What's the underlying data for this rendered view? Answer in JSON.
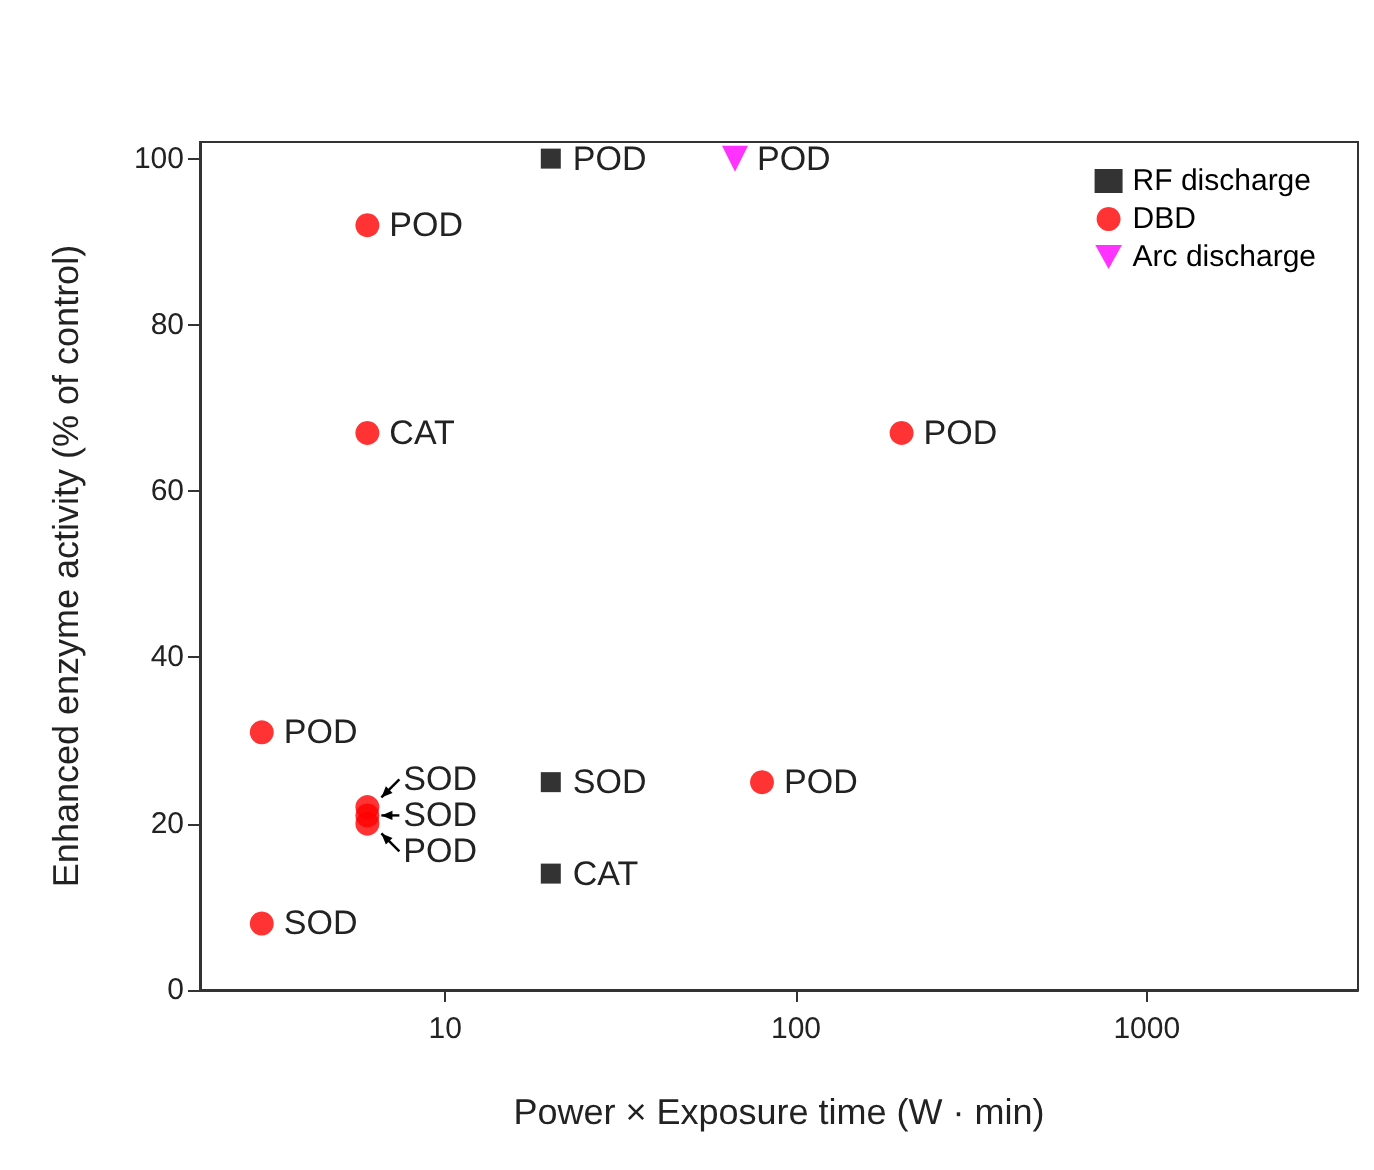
{
  "chart_data": {
    "type": "scatter",
    "xlabel": "Power × Exposure time (W · min)",
    "ylabel": "Enhanced enzyme activity (% of control)",
    "log": "x",
    "xlim": [
      2,
      4000
    ],
    "xticks": [
      10,
      100,
      1000
    ],
    "ylim": [
      0,
      102
    ],
    "yticks": [
      0,
      20,
      40,
      60,
      80,
      100
    ],
    "grid": false,
    "legend": "top right",
    "series": [
      {
        "name": "RF discharge",
        "color": "#000000",
        "marker": "square",
        "x": [
          20,
          20,
          20
        ],
        "values": [
          100,
          25,
          14
        ]
      },
      {
        "name": "DBD",
        "color": "#ff0000",
        "marker": "circle",
        "x": [
          6,
          6,
          200,
          3,
          6,
          6,
          6,
          80,
          3
        ],
        "values": [
          92,
          67,
          67,
          31,
          22,
          21,
          20,
          25,
          8
        ]
      },
      {
        "name": "Arc discharge",
        "color": "#ff00ff",
        "marker": "triangle",
        "x": [
          67
        ],
        "values": [
          100
        ]
      }
    ],
    "annotations": [
      {
        "text": "POD",
        "x": 20,
        "y": 100
      },
      {
        "text": "SOD",
        "x": 20,
        "y": 25
      },
      {
        "text": "CAT",
        "x": 20,
        "y": 14
      },
      {
        "text": "POD",
        "x": 6,
        "y": 92
      },
      {
        "text": "CAT",
        "x": 6,
        "y": 67
      },
      {
        "text": "POD",
        "x": 200,
        "y": 67
      },
      {
        "text": "POD",
        "x": 3,
        "y": 31
      },
      {
        "text": "SOD",
        "x": 6,
        "y": 22
      },
      {
        "text": "SOD",
        "x": 6,
        "y": 21
      },
      {
        "text": "POD",
        "x": 6,
        "y": 20
      },
      {
        "text": "POD",
        "x": 80,
        "y": 25
      },
      {
        "text": "SOD",
        "x": 3,
        "y": 8
      },
      {
        "text": "POD",
        "x": 67,
        "y": 100
      }
    ]
  }
}
